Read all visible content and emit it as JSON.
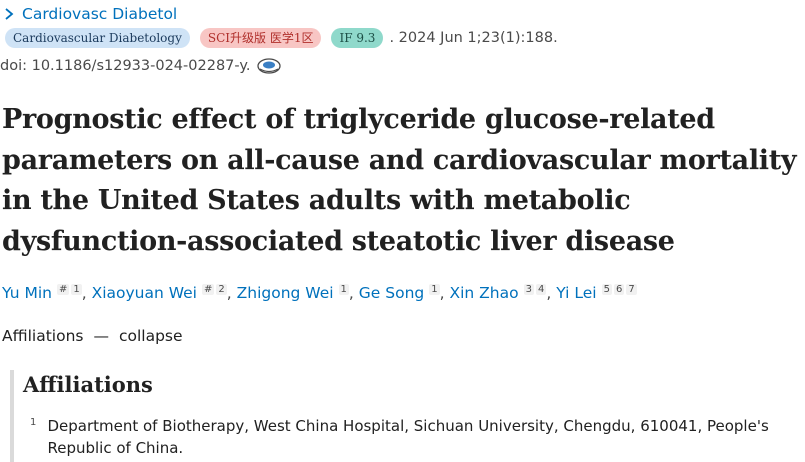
{
  "journal": {
    "link": "Cardiovasc Diabetol"
  },
  "meta": {
    "journal_pill": "Cardiovascular Diabetology",
    "sci_pill": "SCI升级版 医学1区",
    "if_pill": "IF 9.3",
    "date": ". 2024 Jun 1;23(1):188."
  },
  "doi": "doi: 10.1186/s12933-024-02287-y.",
  "title": "Prognostic effect of triglyceride glucose-related parameters on all-cause and cardiovascular mortality in the United States adults with metabolic dysfunction-associated steatotic liver disease",
  "authors": [
    {
      "name": "Yu Min",
      "marks": [
        "#",
        "1"
      ]
    },
    {
      "name": "Xiaoyuan Wei",
      "marks": [
        "#",
        "2"
      ]
    },
    {
      "name": "Zhigong Wei",
      "marks": [
        "1"
      ]
    },
    {
      "name": "Ge Song",
      "marks": [
        "1"
      ]
    },
    {
      "name": "Xin Zhao",
      "marks": [
        "3",
        "4"
      ]
    },
    {
      "name": "Yi Lei",
      "marks": [
        "5",
        "6",
        "7"
      ]
    }
  ],
  "affiliations_toggle": {
    "label": "Affiliations",
    "dash": "—",
    "action": "collapse"
  },
  "affiliations": {
    "heading": "Affiliations",
    "items": [
      {
        "num": "1",
        "text": "Department of Biotherapy, West China Hospital, Sichuan University, Chengdu, 610041, People's Republic of China."
      }
    ]
  },
  "icons": [
    "chevron-right-icon",
    "cited-by-icon"
  ],
  "colors": {
    "link": "#0071bc",
    "sci_pill_bg": "#f8c6c4",
    "if_pill_bg": "#8fd9cb",
    "journal_pill_bg": "#cfe3f6"
  }
}
